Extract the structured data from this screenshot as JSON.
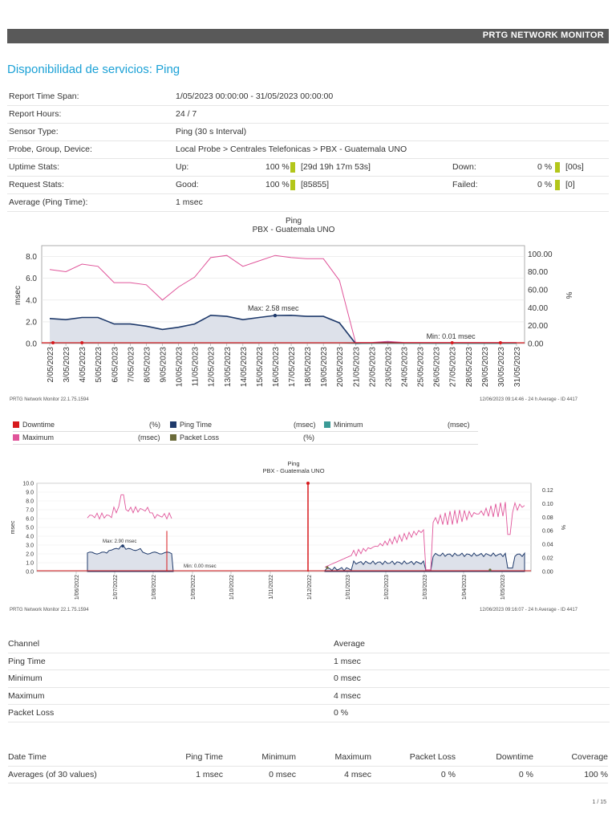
{
  "header": {
    "brand": "PRTG NETWORK MONITOR"
  },
  "title": {
    "prefix": "Disponibilidad de servicios:",
    "name": "Ping"
  },
  "info": {
    "report_time_span": {
      "label": "Report Time Span:",
      "value": "1/05/2023 00:00:00 - 31/05/2023 00:00:00"
    },
    "report_hours": {
      "label": "Report Hours:",
      "value": "24 / 7"
    },
    "sensor_type": {
      "label": "Sensor Type:",
      "value": "Ping (30 s Interval)"
    },
    "path": {
      "label": "Probe, Group, Device:",
      "value": "Local Probe > Centrales Telefonicas > PBX - Guatemala UNO"
    },
    "uptime": {
      "label": "Uptime Stats:",
      "up_label": "Up:",
      "up_pct": "100 %",
      "up_dur": "[29d 19h 17m 53s]",
      "down_label": "Down:",
      "down_pct": "0 %",
      "down_dur": "[00s]"
    },
    "requests": {
      "label": "Request Stats:",
      "good_label": "Good:",
      "good_pct": "100 %",
      "good_count": "[85855]",
      "failed_label": "Failed:",
      "failed_pct": "0 %",
      "failed_count": "[0]"
    },
    "average": {
      "label": "Average (Ping Time):",
      "value": "1 msec"
    }
  },
  "chart1_footer": {
    "left": "PRTG Network Monitor 22.1.75.1594",
    "right": "12/06/2023 09:14:46 - 24 h Average - ID 4417"
  },
  "chart2_footer": {
    "left": "PRTG Network Monitor 22.1.75.1594",
    "right": "12/06/2023 09:16:07 - 24 h Average - ID 4417"
  },
  "legend": [
    {
      "name": "Downtime",
      "unit": "(%)",
      "color": "#d7191c"
    },
    {
      "name": "Ping Time",
      "unit": "(msec)",
      "color": "#1f3a6b"
    },
    {
      "name": "Minimum",
      "unit": "(msec)",
      "color": "#3a9a96"
    },
    {
      "name": "Maximum",
      "unit": "(msec)",
      "color": "#e0559a"
    },
    {
      "name": "Packet Loss",
      "unit": "(%)",
      "color": "#6b6b3a"
    }
  ],
  "channel_table": {
    "headers": [
      "Channel",
      "Average"
    ],
    "rows": [
      [
        "Ping Time",
        "1 msec"
      ],
      [
        "Minimum",
        "0 msec"
      ],
      [
        "Maximum",
        "4 msec"
      ],
      [
        "Packet Loss",
        "0 %"
      ]
    ]
  },
  "summary_table": {
    "headers": [
      "Date Time",
      "Ping Time",
      "Minimum",
      "Maximum",
      "Packet Loss",
      "Downtime",
      "Coverage"
    ],
    "row": [
      "Averages (of 30 values)",
      "1 msec",
      "0 msec",
      "4 msec",
      "0 %",
      "0 %",
      "100 %"
    ]
  },
  "page": "1 / 15",
  "chart_data": [
    {
      "type": "line",
      "title": "Ping",
      "subtitle": "PBX - Guatemala UNO",
      "ylabel": "msec",
      "y2label": "%",
      "ylim": [
        0,
        9
      ],
      "y2lim": [
        0,
        100
      ],
      "yticks": [
        "0.0",
        "2.0",
        "4.0",
        "6.0",
        "8.0"
      ],
      "y2ticks": [
        "0.00",
        "20.00",
        "40.00",
        "60.00",
        "80.00",
        "100.00"
      ],
      "x": [
        "2/05/2023",
        "3/05/2023",
        "4/05/2023",
        "5/05/2023",
        "6/05/2023",
        "7/05/2023",
        "8/05/2023",
        "9/05/2023",
        "10/05/2023",
        "11/05/2023",
        "12/05/2023",
        "13/05/2023",
        "14/05/2023",
        "15/05/2023",
        "16/05/2023",
        "17/05/2023",
        "18/05/2023",
        "19/05/2023",
        "20/05/2023",
        "21/05/2023",
        "22/05/2023",
        "23/05/2023",
        "24/05/2023",
        "25/05/2023",
        "26/05/2023",
        "27/05/2023",
        "28/05/2023",
        "29/05/2023",
        "30/05/2023",
        "31/05/2023"
      ],
      "series": [
        {
          "name": "Maximum",
          "color": "#e0559a",
          "values": [
            6.8,
            6.6,
            7.3,
            7.1,
            5.6,
            5.6,
            5.4,
            4.0,
            5.2,
            6.1,
            7.9,
            8.1,
            7.1,
            7.6,
            8.1,
            7.9,
            7.8,
            7.8,
            5.8,
            0.1,
            0.1,
            0.2,
            0.1,
            0.1,
            0.1,
            0.1,
            0.1,
            0.1,
            0.1,
            0.1
          ]
        },
        {
          "name": "Ping Time",
          "color": "#1f3a6b",
          "values": [
            2.3,
            2.2,
            2.4,
            2.4,
            1.8,
            1.8,
            1.6,
            1.3,
            1.5,
            1.8,
            2.6,
            2.5,
            2.2,
            2.4,
            2.58,
            2.6,
            2.5,
            2.5,
            1.9,
            0.01,
            0.05,
            0.1,
            0.05,
            0.05,
            0.02,
            0.05,
            0.02,
            0.02,
            0.02,
            0.05
          ]
        },
        {
          "name": "Minimum",
          "color": "#3a9a96",
          "values": [
            0.05,
            0.05,
            0.05,
            0.05,
            0.05,
            0.05,
            0.05,
            0.05,
            0.05,
            0.05,
            0.05,
            0.05,
            0.05,
            0.05,
            0.05,
            0.05,
            0.05,
            0.05,
            0.05,
            0.01,
            0.01,
            0.01,
            0.01,
            0.01,
            0.01,
            0.01,
            0.01,
            0.01,
            0.01,
            0.01
          ]
        }
      ],
      "annotations": [
        "Max: 2.58 msec",
        "Min: 0.01 msec"
      ]
    },
    {
      "type": "line",
      "title": "Ping",
      "subtitle": "PBX - Guatemala UNO",
      "ylabel": "msec",
      "y2label": "%",
      "ylim": [
        0,
        10
      ],
      "y2lim": [
        0,
        0.13
      ],
      "yticks": [
        "0.0",
        "1.0",
        "2.0",
        "3.0",
        "4.0",
        "5.0",
        "6.0",
        "7.0",
        "8.0",
        "9.0",
        "10.0"
      ],
      "y2ticks": [
        "0.00",
        "0.02",
        "0.04",
        "0.06",
        "0.08",
        "0.10",
        "0.12"
      ],
      "x": [
        "1/06/2022",
        "1/07/2022",
        "1/08/2022",
        "1/09/2022",
        "1/10/2022",
        "1/11/2022",
        "1/12/2022",
        "1/01/2023",
        "1/02/2023",
        "1/03/2023",
        "1/04/2023",
        "1/05/2023"
      ],
      "annotations": [
        "Max: 2.90 msec",
        "Min: 0.00 msec"
      ]
    }
  ]
}
